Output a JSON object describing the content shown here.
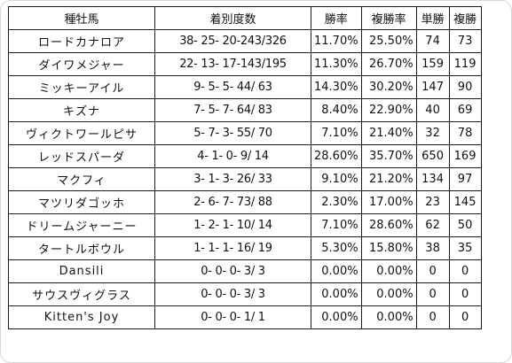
{
  "table": {
    "headers": [
      "種牡馬",
      "着別度数",
      "勝率",
      "複勝率",
      "単勝",
      "複勝"
    ],
    "rows": [
      [
        "ロードカナロア",
        "38- 25- 20-243/326",
        "11.70%",
        "25.50%",
        "74",
        "73"
      ],
      [
        "ダイワメジャー",
        "22- 13- 17-143/195",
        "11.30%",
        "26.70%",
        "159",
        "119"
      ],
      [
        "ミッキーアイル",
        "9- 5- 5- 44/ 63",
        "14.30%",
        "30.20%",
        "147",
        "90"
      ],
      [
        "キズナ",
        "7- 5- 7- 64/ 83",
        "8.40%",
        "22.90%",
        "40",
        "69"
      ],
      [
        "ヴィクトワールピサ",
        "5- 7- 3- 55/ 70",
        "7.10%",
        "21.40%",
        "32",
        "78"
      ],
      [
        "レッドスパーダ",
        "4- 1- 0- 9/ 14",
        "28.60%",
        "35.70%",
        "650",
        "169"
      ],
      [
        "マクフィ",
        "3- 1- 3- 26/ 33",
        "9.10%",
        "21.20%",
        "134",
        "97"
      ],
      [
        "マツリダゴッホ",
        "2- 6- 7- 73/ 88",
        "2.30%",
        "17.00%",
        "23",
        "145"
      ],
      [
        "ドリームジャーニー",
        "1- 2- 1- 10/ 14",
        "7.10%",
        "28.60%",
        "62",
        "50"
      ],
      [
        "タートルボウル",
        "1- 1- 1- 16/ 19",
        "5.30%",
        "15.80%",
        "38",
        "35"
      ],
      [
        "Dansili",
        "0- 0- 0- 3/ 3",
        "0.00%",
        "0.00%",
        "0",
        "0"
      ],
      [
        "サウスヴィグラス",
        "0- 0- 0- 3/ 3",
        "0.00%",
        "0.00%",
        "0",
        "0"
      ],
      [
        "Kitten's Joy",
        "0- 0- 0- 1/ 1",
        "0.00%",
        "0.00%",
        "0",
        "0"
      ]
    ]
  }
}
